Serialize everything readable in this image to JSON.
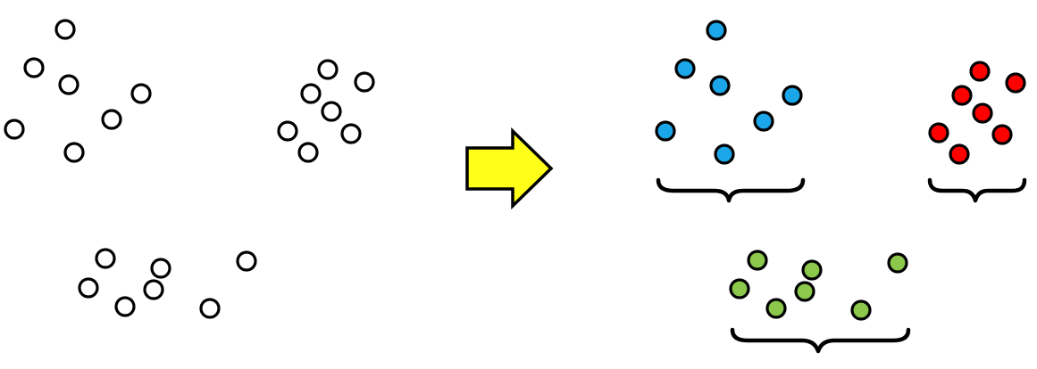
{
  "diagram": {
    "description_visible_text": "",
    "arrow": {
      "fill_color": "#ffff1a",
      "stroke_color": "#000000",
      "direction": "right"
    },
    "unclustered": {
      "fill_color": "#ffffff",
      "groups": [
        {
          "id": "group-a",
          "point_count": 7
        },
        {
          "id": "group-b",
          "point_count": 7
        },
        {
          "id": "group-c",
          "point_count": 7
        }
      ]
    },
    "clustered": {
      "clusters": [
        {
          "id": "cluster-blue",
          "color": "#1aa6e8",
          "point_count": 7
        },
        {
          "id": "cluster-red",
          "color": "#ff0000",
          "point_count": 7
        },
        {
          "id": "cluster-green",
          "color": "#8cc84b",
          "point_count": 7
        }
      ]
    }
  }
}
